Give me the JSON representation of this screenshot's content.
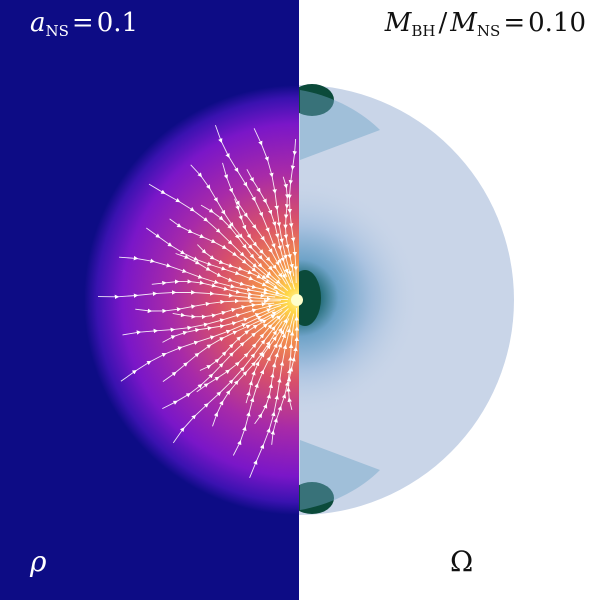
{
  "panels": {
    "left": {
      "quantity": "ρ",
      "parameter": {
        "symbol": "a",
        "subscript": "NS",
        "operator": "=",
        "value": "0.1"
      }
    },
    "right": {
      "quantity": "Ω",
      "parameter": {
        "symbol": "M",
        "subscript": "BH",
        "denominator_symbol": "M",
        "denominator_subscript": "NS",
        "operator": "=",
        "value": "0.10"
      }
    }
  },
  "colors": {
    "background_left": "#0d0c85",
    "background_right": "#ffffff",
    "density_core": "#fff06a",
    "density_mid": "#e0603c",
    "density_outer": "#8a14c0",
    "omega_fill": "#c9d5e8",
    "omega_high": "#0b4a3a"
  }
}
